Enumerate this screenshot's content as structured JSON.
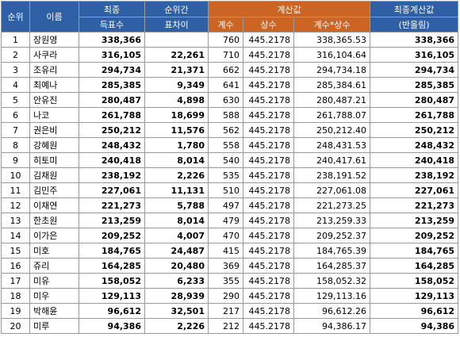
{
  "headers": {
    "rank": "순위",
    "name": "이름",
    "final_votes_1": "최종",
    "final_votes_2": "득표수",
    "gap_1": "순위간",
    "gap_2": "표차이",
    "calc": "계산값",
    "count": "계수",
    "constant": "상수",
    "product": "계수*상수",
    "final_calc_1": "최종계산값",
    "final_calc_2": "(반올림)"
  },
  "rows": [
    {
      "rank": "1",
      "name": "장원영",
      "votes": "338,366",
      "gap": "",
      "count": "760",
      "constant": "445.2178",
      "product": "338,365.53",
      "rounded": "338,366"
    },
    {
      "rank": "2",
      "name": "사쿠라",
      "votes": "316,105",
      "gap": "22,261",
      "count": "710",
      "constant": "445.2178",
      "product": "316,104.64",
      "rounded": "316,105"
    },
    {
      "rank": "3",
      "name": "조유리",
      "votes": "294,734",
      "gap": "21,371",
      "count": "662",
      "constant": "445.2178",
      "product": "294,734.18",
      "rounded": "294,734"
    },
    {
      "rank": "4",
      "name": "최예나",
      "votes": "285,385",
      "gap": "9,349",
      "count": "641",
      "constant": "445.2178",
      "product": "285,384.61",
      "rounded": "285,385"
    },
    {
      "rank": "5",
      "name": "안유진",
      "votes": "280,487",
      "gap": "4,898",
      "count": "630",
      "constant": "445.2178",
      "product": "280,487.21",
      "rounded": "280,487"
    },
    {
      "rank": "6",
      "name": "나코",
      "votes": "261,788",
      "gap": "18,699",
      "count": "588",
      "constant": "445.2178",
      "product": "261,788.07",
      "rounded": "261,788"
    },
    {
      "rank": "7",
      "name": "권은비",
      "votes": "250,212",
      "gap": "11,576",
      "count": "562",
      "constant": "445.2178",
      "product": "250,212.40",
      "rounded": "250,212"
    },
    {
      "rank": "8",
      "name": "강혜원",
      "votes": "248,432",
      "gap": "1,780",
      "count": "558",
      "constant": "445.2178",
      "product": "248,431.53",
      "rounded": "248,432"
    },
    {
      "rank": "9",
      "name": "히토미",
      "votes": "240,418",
      "gap": "8,014",
      "count": "540",
      "constant": "445.2178",
      "product": "240,417.61",
      "rounded": "240,418"
    },
    {
      "rank": "10",
      "name": "김채원",
      "votes": "238,192",
      "gap": "2,226",
      "count": "535",
      "constant": "445.2178",
      "product": "238,191.52",
      "rounded": "238,192"
    },
    {
      "rank": "11",
      "name": "김민주",
      "votes": "227,061",
      "gap": "11,131",
      "count": "510",
      "constant": "445.2178",
      "product": "227,061.08",
      "rounded": "227,061"
    },
    {
      "rank": "12",
      "name": "이채연",
      "votes": "221,273",
      "gap": "5,788",
      "count": "497",
      "constant": "445.2178",
      "product": "221,273.25",
      "rounded": "221,273"
    },
    {
      "rank": "13",
      "name": "한초원",
      "votes": "213,259",
      "gap": "8,014",
      "count": "479",
      "constant": "445.2178",
      "product": "213,259.33",
      "rounded": "213,259"
    },
    {
      "rank": "14",
      "name": "이가은",
      "votes": "209,252",
      "gap": "4,007",
      "count": "470",
      "constant": "445.2178",
      "product": "209,252.37",
      "rounded": "209,252"
    },
    {
      "rank": "15",
      "name": "미호",
      "votes": "184,765",
      "gap": "24,487",
      "count": "415",
      "constant": "445.2178",
      "product": "184,765.39",
      "rounded": "184,765"
    },
    {
      "rank": "16",
      "name": "쥬리",
      "votes": "164,285",
      "gap": "20,480",
      "count": "369",
      "constant": "445.2178",
      "product": "164,285.37",
      "rounded": "164,285"
    },
    {
      "rank": "17",
      "name": "미유",
      "votes": "158,052",
      "gap": "6,233",
      "count": "355",
      "constant": "445.2178",
      "product": "158,052.32",
      "rounded": "158,052"
    },
    {
      "rank": "18",
      "name": "미우",
      "votes": "129,113",
      "gap": "28,939",
      "count": "290",
      "constant": "445.2178",
      "product": "129,113.16",
      "rounded": "129,113"
    },
    {
      "rank": "19",
      "name": "박해윤",
      "votes": "96,612",
      "gap": "32,501",
      "count": "217",
      "constant": "445.2178",
      "product": "96,612.26",
      "rounded": "96,612"
    },
    {
      "rank": "20",
      "name": "미루",
      "votes": "94,386",
      "gap": "2,226",
      "count": "212",
      "constant": "445.2178",
      "product": "94,386.17",
      "rounded": "94,386"
    }
  ],
  "colors": {
    "header_blue": "#2f5fa4",
    "header_orange": "#cc6424",
    "grid": "#9a9a9a"
  }
}
